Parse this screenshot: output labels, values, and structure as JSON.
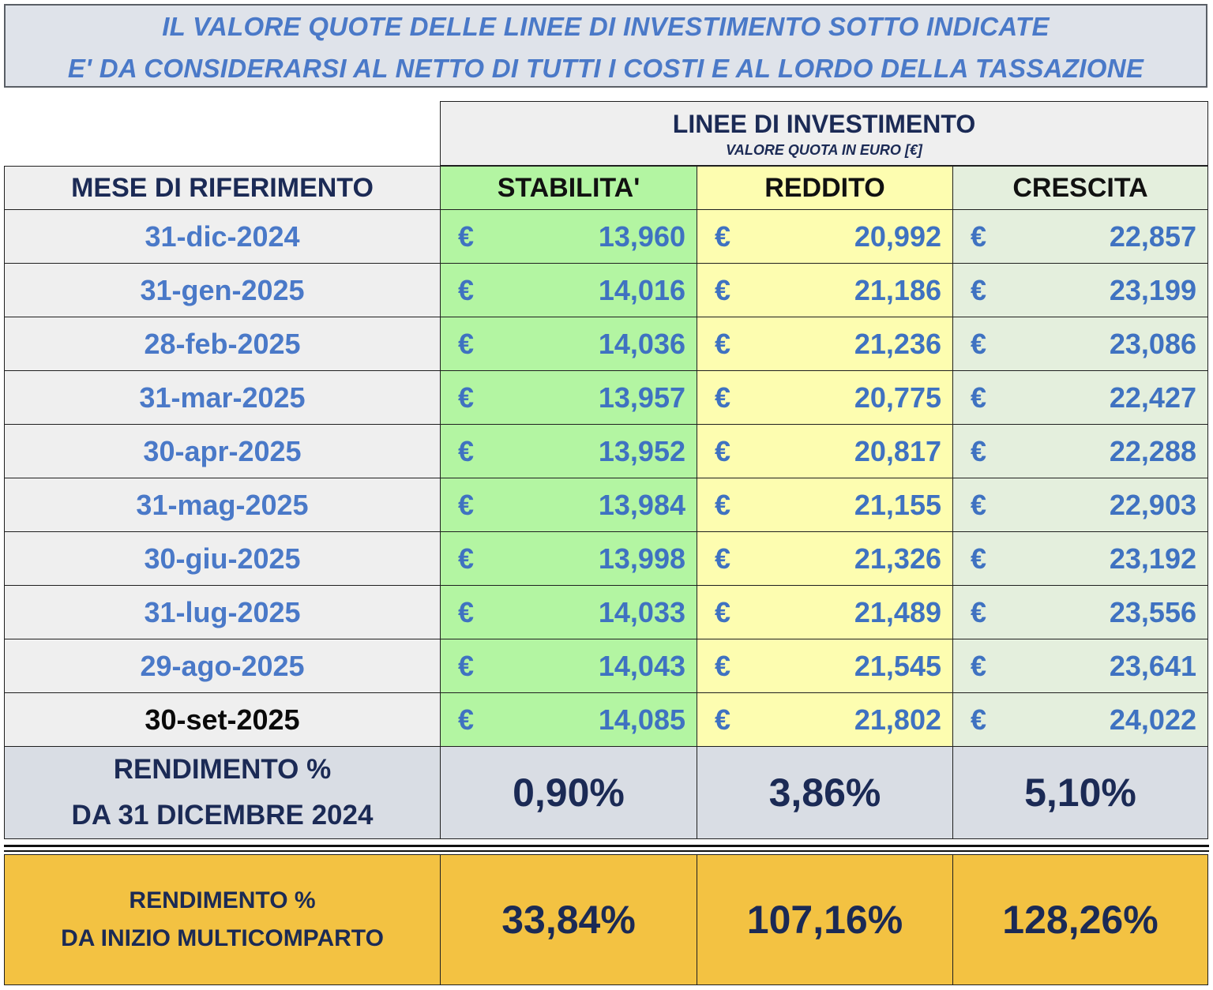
{
  "banner": {
    "line1": "IL VALORE QUOTE DELLE LINEE DI INVESTIMENTO SOTTO INDICATE",
    "line2": "E' DA CONSIDERARSI AL NETTO DI TUTTI I COSTI E AL LORDO DELLA TASSAZIONE"
  },
  "header": {
    "lines_title": "LINEE DI INVESTIMENTO",
    "lines_subtitle": "VALORE QUOTA IN EURO [€]",
    "month_col": "MESE DI RIFERIMENTO",
    "col_stabilita": "STABILITA'",
    "col_reddito": "REDDITO",
    "col_crescita": "CRESCITA"
  },
  "currency": "€",
  "colors": {
    "stabilita": "#b3f5a2",
    "reddito": "#fdfdb0",
    "crescita": "#e4efdd",
    "date_text": "#4a79c8",
    "total_bg": "#f3c242"
  },
  "rows": [
    {
      "date": "31-dic-2024",
      "stabilita": "13,960",
      "reddito": "20,992",
      "crescita": "22,857"
    },
    {
      "date": "31-gen-2025",
      "stabilita": "14,016",
      "reddito": "21,186",
      "crescita": "23,199"
    },
    {
      "date": "28-feb-2025",
      "stabilita": "14,036",
      "reddito": "21,236",
      "crescita": "23,086"
    },
    {
      "date": "31-mar-2025",
      "stabilita": "13,957",
      "reddito": "20,775",
      "crescita": "22,427"
    },
    {
      "date": "30-apr-2025",
      "stabilita": "13,952",
      "reddito": "20,817",
      "crescita": "22,288"
    },
    {
      "date": "31-mag-2025",
      "stabilita": "13,984",
      "reddito": "21,155",
      "crescita": "22,903"
    },
    {
      "date": "30-giu-2025",
      "stabilita": "13,998",
      "reddito": "21,326",
      "crescita": "23,192"
    },
    {
      "date": "31-lug-2025",
      "stabilita": "14,033",
      "reddito": "21,489",
      "crescita": "23,556"
    },
    {
      "date": "29-ago-2025",
      "stabilita": "14,043",
      "reddito": "21,545",
      "crescita": "23,641"
    },
    {
      "date": "30-set-2025",
      "stabilita": "14,085",
      "reddito": "21,802",
      "crescita": "24,022"
    }
  ],
  "ytd": {
    "label_line1": "RENDIMENTO %",
    "label_line2": "DA 31 DICEMBRE 2024",
    "stabilita": "0,90%",
    "reddito": "3,86%",
    "crescita": "5,10%"
  },
  "since_inception": {
    "label_line1": "RENDIMENTO %",
    "label_line2": "DA INIZIO MULTICOMPARTO",
    "stabilita": "33,84%",
    "reddito": "107,16%",
    "crescita": "128,26%"
  }
}
